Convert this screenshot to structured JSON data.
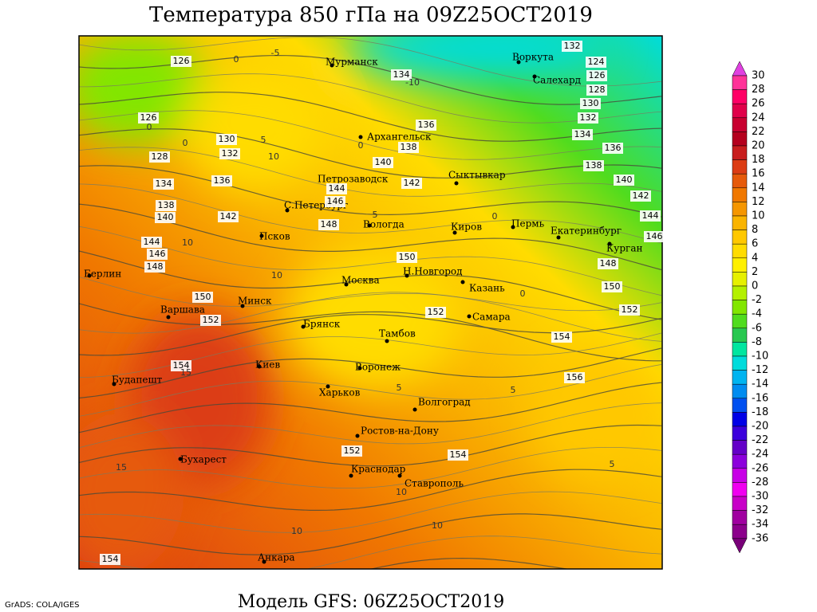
{
  "header": {
    "title": "Температура 850 гПа на 09Z25OCT2019"
  },
  "footer": {
    "model": "Модель GFS: 06Z25OCT2019",
    "credit": "GrADS: COLA/IGES"
  },
  "colorbar": {
    "levels": [
      30,
      28,
      26,
      24,
      22,
      20,
      18,
      16,
      14,
      12,
      10,
      8,
      6,
      4,
      2,
      0,
      -2,
      -4,
      -6,
      -8,
      -10,
      -12,
      -14,
      -16,
      -18,
      -20,
      -22,
      -24,
      -26,
      -28,
      -30,
      -32,
      -34,
      -36
    ],
    "colors": [
      "#e040e0",
      "#ff3399",
      "#ff0066",
      "#e0004a",
      "#c80030",
      "#b4001e",
      "#c81e1e",
      "#dc3c14",
      "#e65a0a",
      "#f07800",
      "#f59600",
      "#fab400",
      "#ffc800",
      "#ffdc00",
      "#fff000",
      "#e6f000",
      "#b4f000",
      "#82e600",
      "#50dc1e",
      "#28c850",
      "#00e6a0",
      "#00dcdc",
      "#00b4f0",
      "#008cf0",
      "#0050f0",
      "#0000e6",
      "#3c00dc",
      "#6400c8",
      "#8c00dc",
      "#c800e6",
      "#f000f0",
      "#c800c8",
      "#a000a0",
      "#8c008c",
      "#780078"
    ]
  },
  "cities": [
    "Мурманск",
    "Архангельск",
    "Воркута",
    "Салехард",
    "Петрозаводск",
    "Сыктывкар",
    "С.Петербург",
    "Вологда",
    "Киров",
    "Пермь",
    "Екатеринбург",
    "Курган",
    "Псков",
    "Берлин",
    "Москва",
    "Н.Новгород",
    "Казань",
    "Минск",
    "Варшава",
    "Брянск",
    "Самара",
    "Тамбов",
    "Киев",
    "Воронеж",
    "Будапешт",
    "Харьков",
    "Волгоград",
    "Ростов-на-Дону",
    "Бухарест",
    "Краснодар",
    "Ставрополь",
    "Анкара"
  ],
  "height_labels": [
    126,
    126,
    128,
    130,
    132,
    134,
    136,
    138,
    140,
    142,
    144,
    146,
    148,
    150,
    152,
    154,
    134,
    136,
    138,
    140,
    142,
    144,
    146,
    148,
    150,
    152,
    154,
    152,
    154,
    132,
    124,
    126,
    128,
    130,
    132,
    134,
    136,
    138,
    140,
    142,
    144,
    146,
    148,
    150,
    152,
    154,
    156
  ],
  "temp_labels": [
    -5,
    -10,
    0,
    0,
    0,
    0,
    5,
    10,
    0,
    5,
    10,
    10,
    0,
    5,
    5,
    15,
    15,
    5,
    10,
    10,
    10
  ]
}
